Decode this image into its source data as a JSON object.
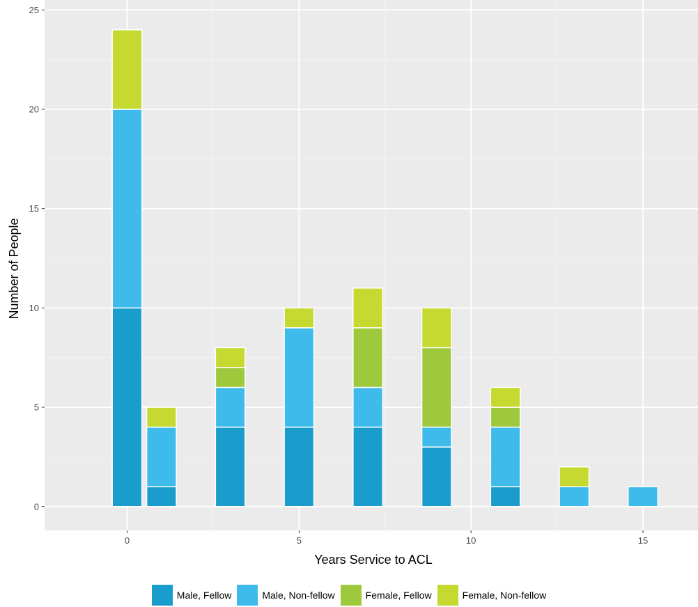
{
  "chart_data": {
    "type": "bar",
    "stacked": true,
    "xlabel": "Years Service to ACL",
    "ylabel": "Number of People",
    "xlim": [
      -2.4,
      16.6
    ],
    "ylim": [
      -1.2,
      25.5
    ],
    "x_ticks": [
      0,
      5,
      10,
      15
    ],
    "y_ticks": [
      0,
      5,
      10,
      15,
      20,
      25
    ],
    "grid": true,
    "legend_position": "bottom",
    "x": [
      0,
      1,
      3,
      5,
      7,
      9,
      11,
      13,
      15
    ],
    "series": [
      {
        "name": "Male, Fellow",
        "color": "#1a9ccc",
        "values": [
          10,
          1,
          4,
          4,
          4,
          3,
          1,
          0,
          0
        ]
      },
      {
        "name": "Male, Non-fellow",
        "color": "#3ebbea",
        "values": [
          10,
          3,
          2,
          5,
          2,
          1,
          3,
          1,
          1
        ]
      },
      {
        "name": "Female, Fellow",
        "color": "#9ec93c",
        "values": [
          0,
          0,
          1,
          0,
          3,
          4,
          1,
          0,
          0
        ]
      },
      {
        "name": "Female, Non-fellow",
        "color": "#c5d930",
        "values": [
          4,
          1,
          1,
          1,
          2,
          2,
          1,
          1,
          0
        ]
      }
    ]
  }
}
